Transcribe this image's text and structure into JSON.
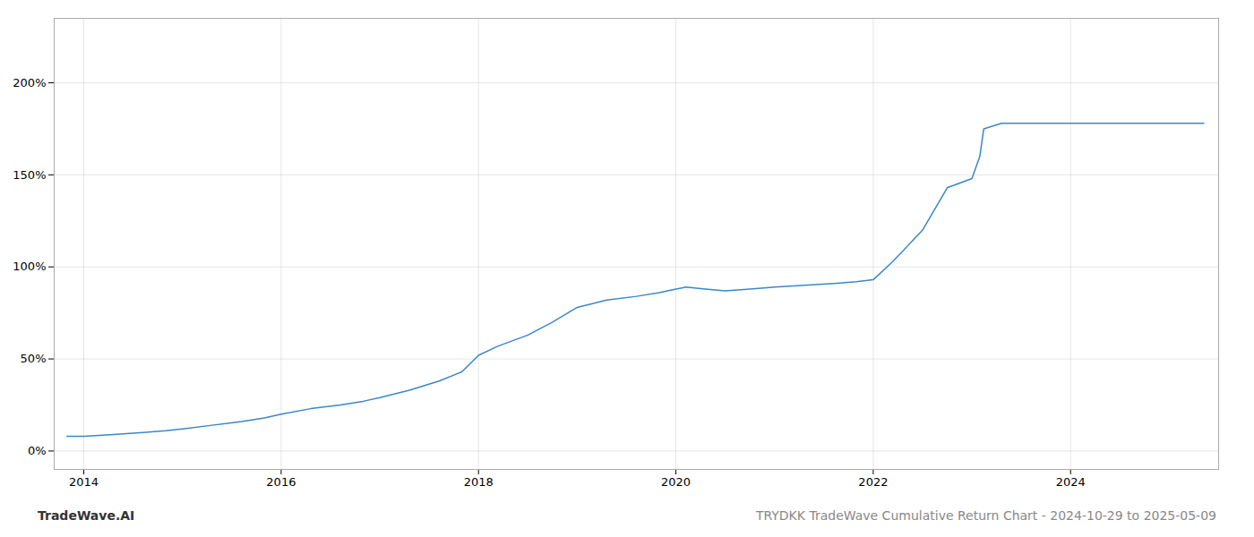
{
  "chart_data": {
    "type": "line",
    "title": "TRYDKK TradeWave Cumulative Return Chart - 2024-10-29 to 2025-05-09",
    "annotations": [
      "TradeWave.AI"
    ],
    "color": "#3a87c8",
    "x": [
      2013.83,
      2014.0,
      2014.3,
      2014.6,
      2014.83,
      2015.0,
      2015.3,
      2015.6,
      2015.83,
      2016.0,
      2016.3,
      2016.6,
      2016.83,
      2017.0,
      2017.3,
      2017.6,
      2017.83,
      2018.0,
      2018.2,
      2018.5,
      2018.75,
      2019.0,
      2019.3,
      2019.6,
      2019.83,
      2020.0,
      2020.1,
      2020.3,
      2020.5,
      2020.75,
      2021.0,
      2021.3,
      2021.6,
      2021.83,
      2022.0,
      2022.2,
      2022.5,
      2022.75,
      2023.0,
      2023.08,
      2023.12,
      2023.3,
      2023.6,
      2023.83,
      2024.0,
      2024.3,
      2024.6,
      2025.35
    ],
    "values": [
      8,
      8,
      9,
      10,
      11,
      12,
      14,
      16,
      18,
      20,
      23,
      25,
      27,
      29,
      33,
      38,
      43,
      52,
      57,
      63,
      70,
      78,
      82,
      84,
      86,
      88,
      89,
      88,
      87,
      88,
      89,
      90,
      91,
      92,
      93,
      103,
      120,
      143,
      148,
      160,
      175,
      178,
      178,
      178,
      178,
      178,
      178,
      178
    ],
    "xlim": [
      2013.7,
      2025.5
    ],
    "ylim": [
      -10,
      235
    ],
    "xticks": [
      2014,
      2016,
      2018,
      2020,
      2022,
      2024
    ],
    "yticks": [
      {
        "value": 0,
        "label": "0%"
      },
      {
        "value": 50,
        "label": "50%"
      },
      {
        "value": 100,
        "label": "100%"
      },
      {
        "value": 150,
        "label": "150%"
      },
      {
        "value": 200,
        "label": "200%"
      }
    ],
    "grid": true
  }
}
